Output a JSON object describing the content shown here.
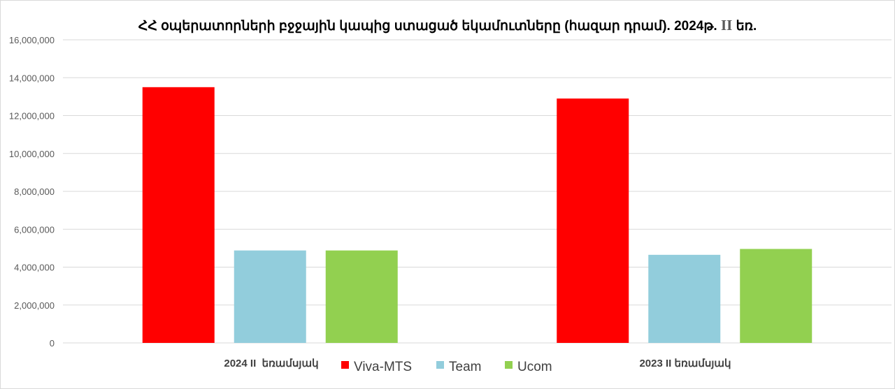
{
  "chart_data": {
    "type": "bar",
    "title_main": "ՀՀ օպերատորների բջջային կապից ստացած եկամուտները (հազար դրամ). 2024թ.",
    "title_numeral": "II",
    "title_tail": "եռ.",
    "categories": [
      "2024 II  եռամսյակ",
      "2023 II եռամսյակ"
    ],
    "series": [
      {
        "name": "Viva-MTS",
        "color": "#ff0000",
        "values": [
          13500000,
          12900000
        ]
      },
      {
        "name": "Team",
        "color": "#92cddc",
        "values": [
          4880000,
          4650000
        ]
      },
      {
        "name": "Ucom",
        "color": "#92d050",
        "values": [
          4880000,
          4960000
        ]
      }
    ],
    "ylim": [
      0,
      16000000
    ],
    "yticks": [
      0,
      2000000,
      4000000,
      6000000,
      8000000,
      10000000,
      12000000,
      14000000,
      16000000
    ],
    "ytick_labels": [
      "0",
      "2,000,000",
      "4,000,000",
      "6,000,000",
      "8,000,000",
      "10,000,000",
      "12,000,000",
      "14,000,000",
      "16,000,000"
    ],
    "grid": true,
    "legend_position": "bottom"
  }
}
